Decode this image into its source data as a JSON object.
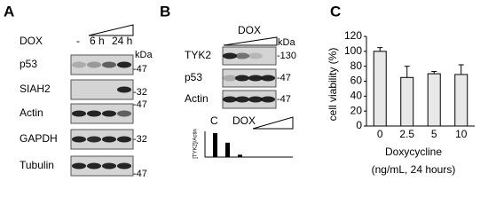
{
  "panel_a": {
    "label": "A",
    "treatment": "DOX",
    "lanes": [
      "-",
      "6 h",
      "24 h"
    ],
    "unit": "kDa",
    "rows": [
      {
        "name": "p53",
        "markers": [
          "-47"
        ]
      },
      {
        "name": "SIAH2",
        "markers": [
          "-32"
        ]
      },
      {
        "name": "Actin",
        "markers": [
          "-47"
        ]
      },
      {
        "name": "GAPDH",
        "markers": [
          "-32"
        ]
      },
      {
        "name": "Tubulin",
        "markers": [
          "-47"
        ]
      }
    ]
  },
  "panel_b": {
    "label": "B",
    "treatment": "DOX",
    "unit": "kDa",
    "rows": [
      {
        "name": "TYK2",
        "marker": "-130"
      },
      {
        "name": "p53",
        "marker": "-47"
      },
      {
        "name": "Actin",
        "marker": "-47"
      }
    ],
    "chart": {
      "type": "bar",
      "control_label": "C",
      "treatment_label": "DOX",
      "y_label": "[TYK2]/Actin",
      "values": [
        1,
        0.6,
        0.1,
        0
      ],
      "ylim": [
        0,
        1
      ],
      "color": "#000000"
    }
  },
  "panel_c": {
    "label": "C",
    "chart": {
      "type": "bar",
      "y_label": "cell viability (%)",
      "x_label": "Doxycycline",
      "x_sublabel": "(ng/mL, 24 hours)",
      "categories": [
        "0",
        "2.5",
        "5",
        "10"
      ],
      "values": [
        100,
        65,
        70,
        69
      ],
      "errors": [
        5,
        15,
        3,
        13
      ],
      "ylim": [
        0,
        120
      ],
      "yticks": [
        0,
        20,
        40,
        60,
        80,
        100,
        120
      ],
      "color": "#e8e8e8"
    }
  }
}
